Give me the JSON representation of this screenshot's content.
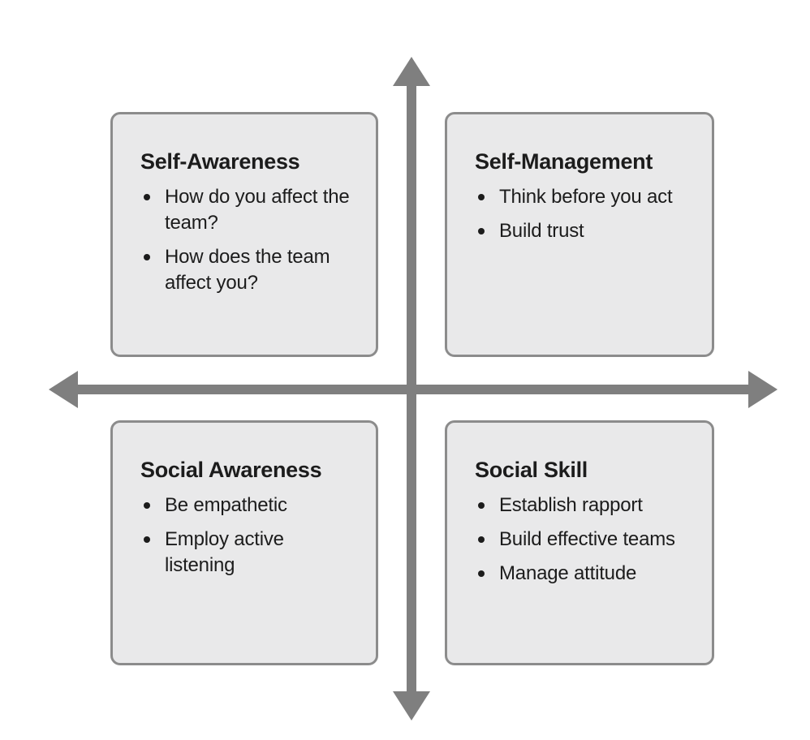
{
  "colors": {
    "axis": "#7f7f7f",
    "box_fill": "#e9e9ea",
    "box_border": "#8c8c8c",
    "text": "#1c1c1c"
  },
  "quadrants": [
    {
      "title": "Self-Awareness",
      "items": [
        "How do you affect the team?",
        "How does the team affect you?"
      ]
    },
    {
      "title": "Self-Management",
      "items": [
        "Think before you act",
        "Build trust"
      ]
    },
    {
      "title": "Social Awareness",
      "items": [
        "Be empathetic",
        "Employ active listening"
      ]
    },
    {
      "title": "Social Skill",
      "items": [
        "Establish rapport",
        "Build effective teams",
        "Manage attitude"
      ]
    }
  ]
}
